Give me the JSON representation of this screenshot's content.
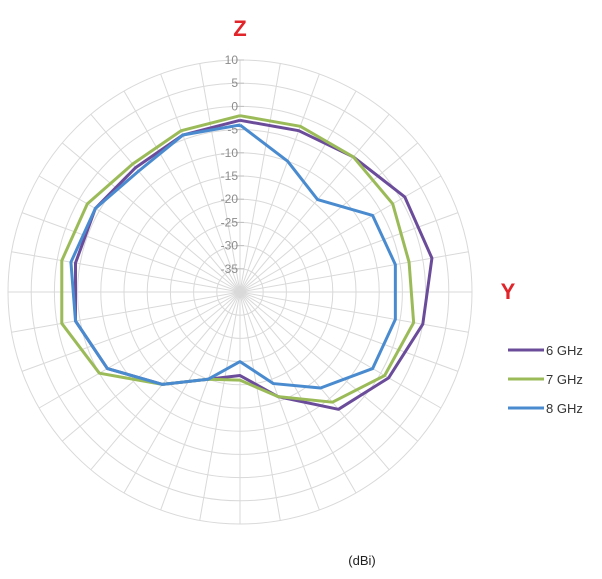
{
  "chart_data": {
    "type": "polar-line",
    "radial_axis": {
      "min": -40,
      "max": 10,
      "ticks": [
        10,
        5,
        0,
        -5,
        -10,
        -15,
        -20,
        -25,
        -30,
        -35
      ],
      "tick_labels": [
        "10",
        "5",
        "0",
        "-5",
        "-10",
        "-15",
        "-20",
        "-25",
        "-30",
        "-35"
      ]
    },
    "angular_axis": {
      "spoke_step_deg": 10,
      "top_label": "Z",
      "right_label": "Y",
      "orientation": "0° at top (Z), 90° at right (Y), clockwise"
    },
    "unit_label": "(dBi)",
    "grid": true,
    "legend_position": "right",
    "angles": [
      0,
      20,
      40,
      60,
      80,
      100,
      120,
      140,
      160,
      180,
      200,
      220,
      240,
      260,
      280,
      300,
      320,
      340
    ],
    "series": [
      {
        "name": "6 GHz",
        "color": "#6b4c9a",
        "values": [
          -3,
          -3,
          -2,
          1,
          2,
          0,
          -3,
          -7,
          -16,
          -22,
          -20,
          -14,
          -7,
          -4,
          -4,
          -4,
          -5,
          -4
        ]
      },
      {
        "name": "7 GHz",
        "color": "#9bbb59",
        "values": [
          -2,
          -2,
          -2,
          -2,
          -3,
          -2,
          -4,
          -9,
          -16,
          -21,
          -20,
          -14,
          -5,
          -1,
          -1,
          -2,
          -4,
          -3
        ]
      },
      {
        "name": "8 GHz",
        "color": "#4a8bd0",
        "values": [
          -4,
          -10,
          -14,
          -7,
          -6,
          -6,
          -7,
          -13,
          -19,
          -25,
          -20,
          -14,
          -7,
          -4,
          -3,
          -4,
          -6,
          -4
        ]
      }
    ]
  }
}
